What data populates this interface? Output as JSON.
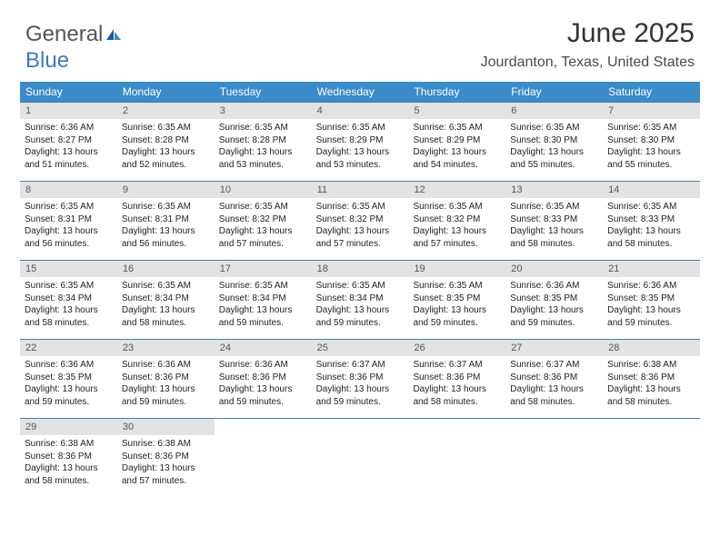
{
  "logo": {
    "part1": "General",
    "part2": "Blue"
  },
  "title": "June 2025",
  "location": "Jourdanton, Texas, United States",
  "colors": {
    "header_bg": "#3b8bc8",
    "header_text": "#ffffff",
    "daynum_bg": "#e3e3e3",
    "row_border": "#4a7ba8",
    "logo_gray": "#555555",
    "logo_blue": "#3b7bbf",
    "title_color": "#333333",
    "location_color": "#4a4a4a",
    "text_color": "#222222",
    "page_bg": "#ffffff"
  },
  "typography": {
    "title_fontsize": 30,
    "location_fontsize": 16,
    "header_fontsize": 12,
    "daynum_fontsize": 11,
    "body_fontsize": 10,
    "logo_fontsize": 24
  },
  "weekdays": [
    "Sunday",
    "Monday",
    "Tuesday",
    "Wednesday",
    "Thursday",
    "Friday",
    "Saturday"
  ],
  "days": [
    {
      "n": 1,
      "sunrise": "6:36 AM",
      "sunset": "8:27 PM",
      "dh": 13,
      "dm": 51
    },
    {
      "n": 2,
      "sunrise": "6:35 AM",
      "sunset": "8:28 PM",
      "dh": 13,
      "dm": 52
    },
    {
      "n": 3,
      "sunrise": "6:35 AM",
      "sunset": "8:28 PM",
      "dh": 13,
      "dm": 53
    },
    {
      "n": 4,
      "sunrise": "6:35 AM",
      "sunset": "8:29 PM",
      "dh": 13,
      "dm": 53
    },
    {
      "n": 5,
      "sunrise": "6:35 AM",
      "sunset": "8:29 PM",
      "dh": 13,
      "dm": 54
    },
    {
      "n": 6,
      "sunrise": "6:35 AM",
      "sunset": "8:30 PM",
      "dh": 13,
      "dm": 55
    },
    {
      "n": 7,
      "sunrise": "6:35 AM",
      "sunset": "8:30 PM",
      "dh": 13,
      "dm": 55
    },
    {
      "n": 8,
      "sunrise": "6:35 AM",
      "sunset": "8:31 PM",
      "dh": 13,
      "dm": 56
    },
    {
      "n": 9,
      "sunrise": "6:35 AM",
      "sunset": "8:31 PM",
      "dh": 13,
      "dm": 56
    },
    {
      "n": 10,
      "sunrise": "6:35 AM",
      "sunset": "8:32 PM",
      "dh": 13,
      "dm": 57
    },
    {
      "n": 11,
      "sunrise": "6:35 AM",
      "sunset": "8:32 PM",
      "dh": 13,
      "dm": 57
    },
    {
      "n": 12,
      "sunrise": "6:35 AM",
      "sunset": "8:32 PM",
      "dh": 13,
      "dm": 57
    },
    {
      "n": 13,
      "sunrise": "6:35 AM",
      "sunset": "8:33 PM",
      "dh": 13,
      "dm": 58
    },
    {
      "n": 14,
      "sunrise": "6:35 AM",
      "sunset": "8:33 PM",
      "dh": 13,
      "dm": 58
    },
    {
      "n": 15,
      "sunrise": "6:35 AM",
      "sunset": "8:34 PM",
      "dh": 13,
      "dm": 58
    },
    {
      "n": 16,
      "sunrise": "6:35 AM",
      "sunset": "8:34 PM",
      "dh": 13,
      "dm": 58
    },
    {
      "n": 17,
      "sunrise": "6:35 AM",
      "sunset": "8:34 PM",
      "dh": 13,
      "dm": 59
    },
    {
      "n": 18,
      "sunrise": "6:35 AM",
      "sunset": "8:34 PM",
      "dh": 13,
      "dm": 59
    },
    {
      "n": 19,
      "sunrise": "6:35 AM",
      "sunset": "8:35 PM",
      "dh": 13,
      "dm": 59
    },
    {
      "n": 20,
      "sunrise": "6:36 AM",
      "sunset": "8:35 PM",
      "dh": 13,
      "dm": 59
    },
    {
      "n": 21,
      "sunrise": "6:36 AM",
      "sunset": "8:35 PM",
      "dh": 13,
      "dm": 59
    },
    {
      "n": 22,
      "sunrise": "6:36 AM",
      "sunset": "8:35 PM",
      "dh": 13,
      "dm": 59
    },
    {
      "n": 23,
      "sunrise": "6:36 AM",
      "sunset": "8:36 PM",
      "dh": 13,
      "dm": 59
    },
    {
      "n": 24,
      "sunrise": "6:36 AM",
      "sunset": "8:36 PM",
      "dh": 13,
      "dm": 59
    },
    {
      "n": 25,
      "sunrise": "6:37 AM",
      "sunset": "8:36 PM",
      "dh": 13,
      "dm": 59
    },
    {
      "n": 26,
      "sunrise": "6:37 AM",
      "sunset": "8:36 PM",
      "dh": 13,
      "dm": 58
    },
    {
      "n": 27,
      "sunrise": "6:37 AM",
      "sunset": "8:36 PM",
      "dh": 13,
      "dm": 58
    },
    {
      "n": 28,
      "sunrise": "6:38 AM",
      "sunset": "8:36 PM",
      "dh": 13,
      "dm": 58
    },
    {
      "n": 29,
      "sunrise": "6:38 AM",
      "sunset": "8:36 PM",
      "dh": 13,
      "dm": 58
    },
    {
      "n": 30,
      "sunrise": "6:38 AM",
      "sunset": "8:36 PM",
      "dh": 13,
      "dm": 57
    }
  ],
  "labels": {
    "sunrise": "Sunrise:",
    "sunset": "Sunset:",
    "daylight_prefix": "Daylight:",
    "hours_word": "hours",
    "and_word": "and",
    "minutes_word": "minutes."
  }
}
